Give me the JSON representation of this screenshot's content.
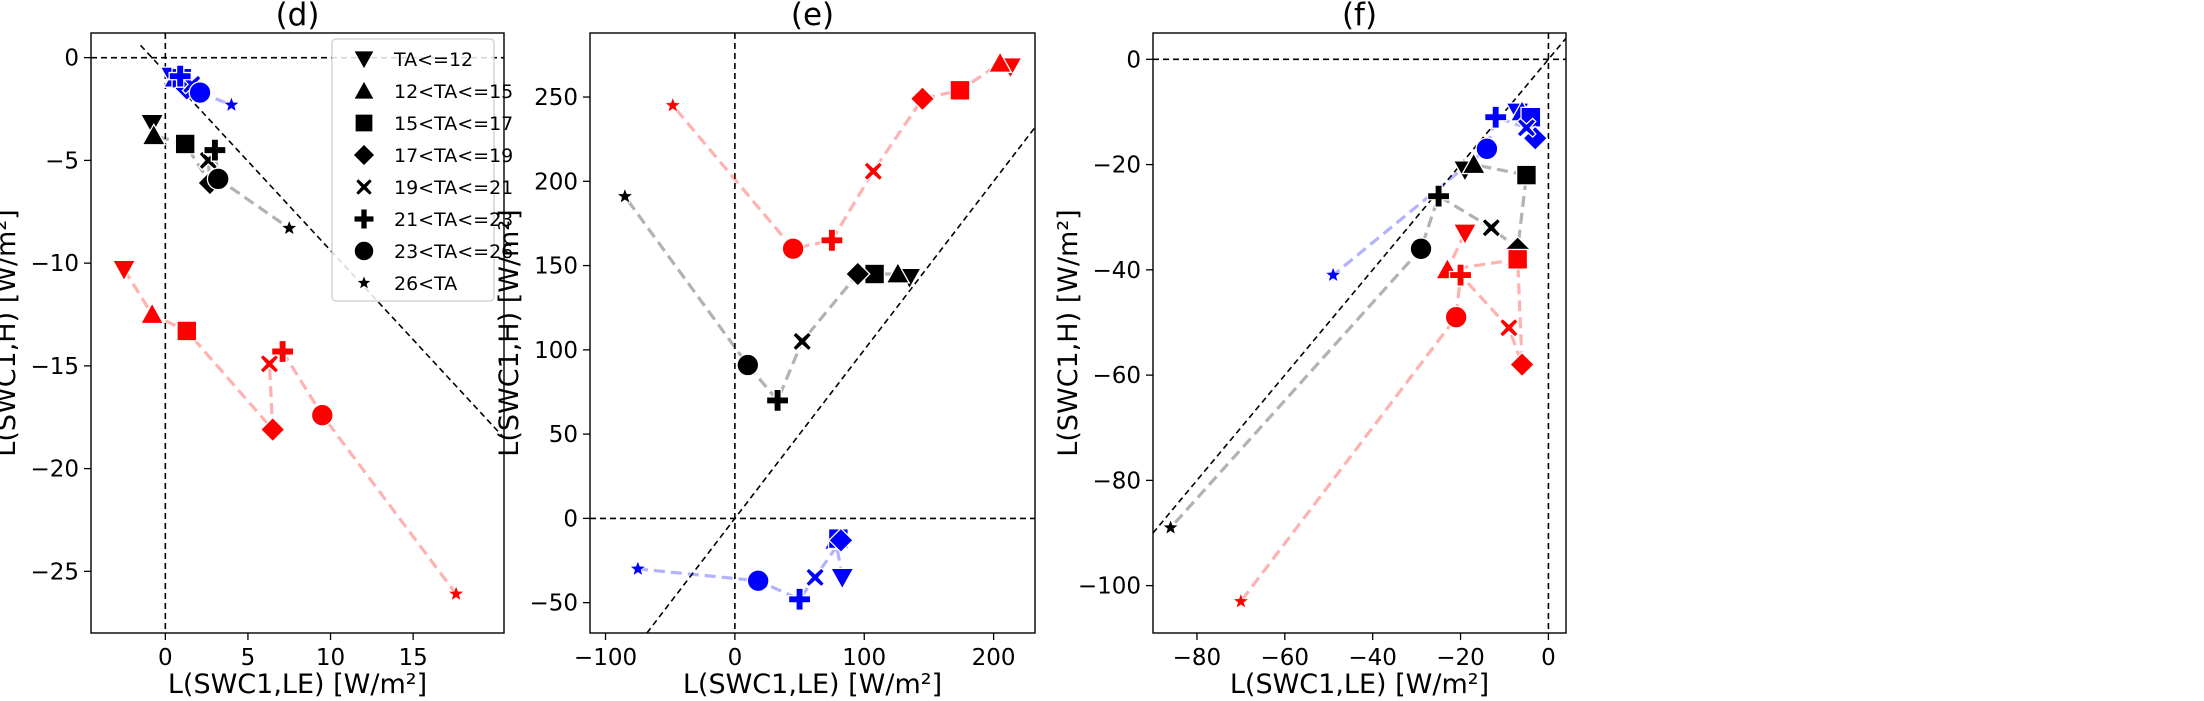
{
  "chart_data": [
    {
      "type": "scatter",
      "title": "(d)",
      "xlabel": "L(SWC1,LE) [W/m²]",
      "ylabel": "L(SWC1,H) [W/m²]",
      "xlim": [
        -4.5,
        20.5
      ],
      "ylim": [
        -28,
        1.2
      ],
      "xticks": [
        0,
        5,
        10,
        15
      ],
      "yticks": [
        0,
        -5,
        -10,
        -15,
        -20,
        -25
      ],
      "xtick_labels": [
        "0",
        "5",
        "10",
        "15"
      ],
      "ytick_labels": [
        "0",
        "−5",
        "−10",
        "−15",
        "−20",
        "−25"
      ],
      "reference_lines": [
        {
          "kind": "hline",
          "y": 0
        },
        {
          "kind": "vline",
          "x": 0
        },
        {
          "kind": "line",
          "x1": -1.5,
          "y1": 0.6,
          "x2": 20.5,
          "y2": -18.5
        }
      ],
      "legend": {
        "placement": "top-right",
        "entries": [
          {
            "marker": "triangle-down",
            "label": "TA<=12"
          },
          {
            "marker": "triangle-up",
            "label": "12<TA<=15"
          },
          {
            "marker": "square",
            "label": "15<TA<=17"
          },
          {
            "marker": "diamond",
            "label": "17<TA<=19"
          },
          {
            "marker": "x",
            "label": "19<TA<=21"
          },
          {
            "marker": "plus",
            "label": "21<TA<=23"
          },
          {
            "marker": "circle",
            "label": "23<TA<=26"
          },
          {
            "marker": "star",
            "label": "26<TA"
          }
        ]
      },
      "series": [
        {
          "color": "#0000ff",
          "points": [
            {
              "x": 0.4,
              "y": -0.9,
              "marker": "triangle-down"
            },
            {
              "x": 0.6,
              "y": -1.0,
              "marker": "triangle-up"
            },
            {
              "x": 1.0,
              "y": -1.0,
              "marker": "square"
            },
            {
              "x": 1.3,
              "y": -1.5,
              "marker": "diamond"
            },
            {
              "x": 1.6,
              "y": -1.3,
              "marker": "x"
            },
            {
              "x": 0.9,
              "y": -0.9,
              "marker": "plus"
            },
            {
              "x": 2.1,
              "y": -1.7,
              "marker": "circle"
            },
            {
              "x": 4.0,
              "y": -2.3,
              "marker": "star"
            }
          ]
        },
        {
          "color": "#000000",
          "points": [
            {
              "x": -0.8,
              "y": -3.2,
              "marker": "triangle-down"
            },
            {
              "x": -0.7,
              "y": -3.8,
              "marker": "triangle-up"
            },
            {
              "x": 1.2,
              "y": -4.2,
              "marker": "square"
            },
            {
              "x": 2.7,
              "y": -6.1,
              "marker": "diamond"
            },
            {
              "x": 2.6,
              "y": -5.0,
              "marker": "x"
            },
            {
              "x": 3.0,
              "y": -4.5,
              "marker": "plus"
            },
            {
              "x": 3.2,
              "y": -5.9,
              "marker": "circle"
            },
            {
              "x": 7.5,
              "y": -8.3,
              "marker": "star"
            }
          ]
        },
        {
          "color": "#ff0000",
          "points": [
            {
              "x": -2.5,
              "y": -10.3,
              "marker": "triangle-down"
            },
            {
              "x": -0.8,
              "y": -12.5,
              "marker": "triangle-up"
            },
            {
              "x": 1.3,
              "y": -13.3,
              "marker": "square"
            },
            {
              "x": 6.5,
              "y": -18.1,
              "marker": "diamond"
            },
            {
              "x": 6.3,
              "y": -14.9,
              "marker": "x"
            },
            {
              "x": 7.1,
              "y": -14.3,
              "marker": "plus"
            },
            {
              "x": 9.5,
              "y": -17.4,
              "marker": "circle"
            },
            {
              "x": 17.6,
              "y": -26.1,
              "marker": "star"
            }
          ]
        }
      ]
    },
    {
      "type": "scatter",
      "title": "(e)",
      "xlabel": "L(SWC1,LE) [W/m²]",
      "ylabel": "L(SWC1,H) [W/m²]",
      "xlim": [
        -112,
        232
      ],
      "ylim": [
        -68,
        288
      ],
      "xticks": [
        -100,
        0,
        100,
        200
      ],
      "yticks": [
        -50,
        0,
        50,
        100,
        150,
        200,
        250
      ],
      "xtick_labels": [
        "−100",
        "0",
        "100",
        "200"
      ],
      "ytick_labels": [
        "−50",
        "0",
        "50",
        "100",
        "150",
        "200",
        "250"
      ],
      "reference_lines": [
        {
          "kind": "hline",
          "y": 0
        },
        {
          "kind": "vline",
          "x": 0
        },
        {
          "kind": "line",
          "x1": -68,
          "y1": -68,
          "x2": 232,
          "y2": 232
        }
      ],
      "series": [
        {
          "color": "#0000ff",
          "points": [
            {
              "x": 83,
              "y": -35,
              "marker": "triangle-down"
            },
            {
              "x": 78,
              "y": -13,
              "marker": "triangle-up"
            },
            {
              "x": 80,
              "y": -12,
              "marker": "square"
            },
            {
              "x": 82,
              "y": -13,
              "marker": "diamond"
            },
            {
              "x": 62,
              "y": -35,
              "marker": "x"
            },
            {
              "x": 50,
              "y": -48,
              "marker": "plus"
            },
            {
              "x": 18,
              "y": -37,
              "marker": "circle"
            },
            {
              "x": -75,
              "y": -30,
              "marker": "star"
            }
          ]
        },
        {
          "color": "#000000",
          "points": [
            {
              "x": 135,
              "y": 143,
              "marker": "triangle-down"
            },
            {
              "x": 126,
              "y": 145,
              "marker": "triangle-up"
            },
            {
              "x": 108,
              "y": 145,
              "marker": "square"
            },
            {
              "x": 95,
              "y": 145,
              "marker": "diamond"
            },
            {
              "x": 52,
              "y": 105,
              "marker": "x"
            },
            {
              "x": 33,
              "y": 70,
              "marker": "plus"
            },
            {
              "x": 10,
              "y": 91,
              "marker": "circle"
            },
            {
              "x": -85,
              "y": 191,
              "marker": "star"
            }
          ]
        },
        {
          "color": "#ff0000",
          "points": [
            {
              "x": 213,
              "y": 268,
              "marker": "triangle-down"
            },
            {
              "x": 205,
              "y": 270,
              "marker": "triangle-up"
            },
            {
              "x": 174,
              "y": 254,
              "marker": "square"
            },
            {
              "x": 145,
              "y": 249,
              "marker": "diamond"
            },
            {
              "x": 107,
              "y": 206,
              "marker": "x"
            },
            {
              "x": 75,
              "y": 165,
              "marker": "plus"
            },
            {
              "x": 45,
              "y": 160,
              "marker": "circle"
            },
            {
              "x": -48,
              "y": 245,
              "marker": "star"
            }
          ]
        }
      ]
    },
    {
      "type": "scatter",
      "title": "(f)",
      "xlabel": "L(SWC1,LE) [W/m²]",
      "ylabel": "L(SWC1,H) [W/m²]",
      "xlim": [
        -90,
        4
      ],
      "ylim": [
        -109,
        5
      ],
      "xticks": [
        -80,
        -60,
        -40,
        -20,
        0
      ],
      "yticks": [
        0,
        -20,
        -40,
        -60,
        -80,
        -100
      ],
      "xtick_labels": [
        "−80",
        "−60",
        "−40",
        "−20",
        "0"
      ],
      "ytick_labels": [
        "0",
        "−20",
        "−40",
        "−60",
        "−80",
        "−100"
      ],
      "reference_lines": [
        {
          "kind": "hline",
          "y": 0
        },
        {
          "kind": "vline",
          "x": 0
        },
        {
          "kind": "line",
          "x1": -90,
          "y1": -90,
          "x2": 4,
          "y2": 4
        }
      ],
      "series": [
        {
          "color": "#0000ff",
          "points": [
            {
              "x": -7,
              "y": -10,
              "marker": "triangle-down"
            },
            {
              "x": -6,
              "y": -10,
              "marker": "triangle-up"
            },
            {
              "x": -4,
              "y": -11,
              "marker": "square"
            },
            {
              "x": -3,
              "y": -15,
              "marker": "diamond"
            },
            {
              "x": -5,
              "y": -13,
              "marker": "x"
            },
            {
              "x": -12,
              "y": -11,
              "marker": "plus"
            },
            {
              "x": -14,
              "y": -17,
              "marker": "circle"
            },
            {
              "x": -49,
              "y": -41,
              "marker": "star"
            }
          ]
        },
        {
          "color": "#000000",
          "points": [
            {
              "x": -19,
              "y": -21,
              "marker": "triangle-down"
            },
            {
              "x": -17,
              "y": -20,
              "marker": "triangle-up"
            },
            {
              "x": -5,
              "y": -22,
              "marker": "square"
            },
            {
              "x": -7,
              "y": -36,
              "marker": "diamond"
            },
            {
              "x": -13,
              "y": -32,
              "marker": "x"
            },
            {
              "x": -25,
              "y": -26,
              "marker": "plus"
            },
            {
              "x": -29,
              "y": -36,
              "marker": "circle"
            },
            {
              "x": -86,
              "y": -89,
              "marker": "star"
            }
          ]
        },
        {
          "color": "#ff0000",
          "points": [
            {
              "x": -19,
              "y": -33,
              "marker": "triangle-down"
            },
            {
              "x": -23,
              "y": -40,
              "marker": "triangle-up"
            },
            {
              "x": -7,
              "y": -38,
              "marker": "square"
            },
            {
              "x": -6,
              "y": -58,
              "marker": "diamond"
            },
            {
              "x": -9,
              "y": -51,
              "marker": "x"
            },
            {
              "x": -20,
              "y": -41,
              "marker": "plus"
            },
            {
              "x": -21,
              "y": -49,
              "marker": "circle"
            },
            {
              "x": -70,
              "y": -103,
              "marker": "star"
            }
          ]
        }
      ]
    }
  ]
}
